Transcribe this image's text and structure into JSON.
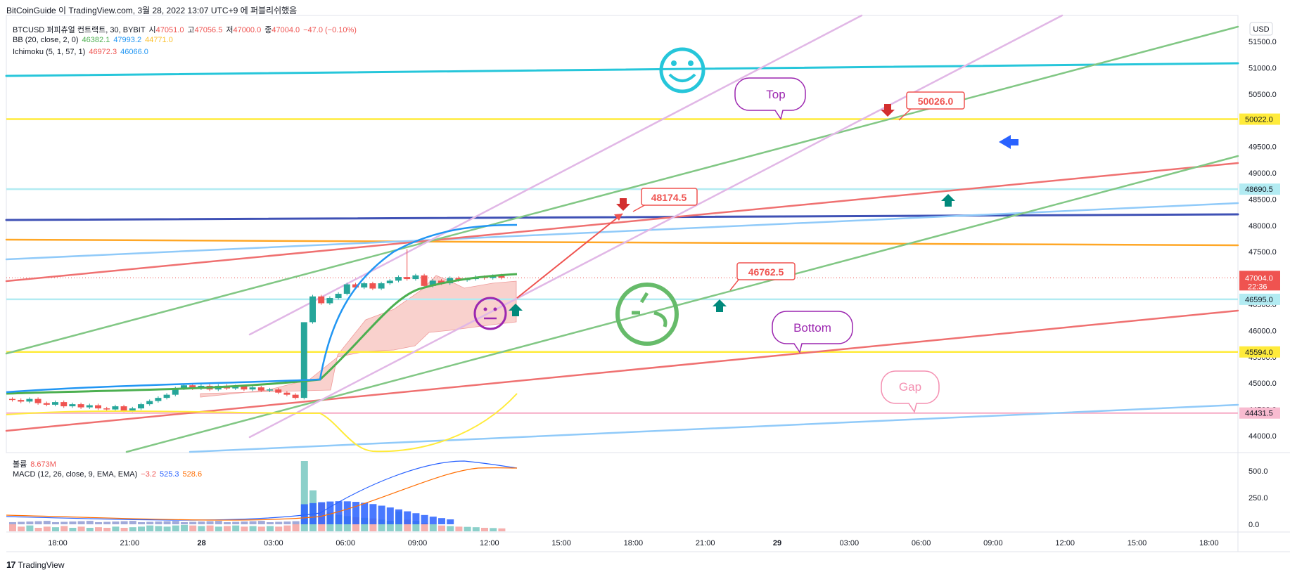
{
  "header": {
    "caption": "BitCoinGuide 이 TradingView.com, 3월 28, 2022 13:07 UTC+9 에 퍼블리쉬했음"
  },
  "legend": {
    "symbol": "BTCUSD 퍼피츄얼 컨트랙트, 30, BYBIT",
    "o_label": "시",
    "o_value": "47051.0",
    "h_label": "고",
    "h_value": "47056.5",
    "l_label": "저",
    "l_value": "47000.0",
    "c_label": "종",
    "c_value": "47004.0",
    "change": "−47.0 (−0.10%)",
    "bb_label": "BB (20, close, 2, 0)",
    "bb_basis": "46382.1",
    "bb_upper": "47993.2",
    "bb_lower": "44771.0",
    "ichi_label": "Ichimoku (5, 1, 57, 1)",
    "ichi_a": "46972.3",
    "ichi_b": "46066.0",
    "vol_label": "볼륨",
    "vol_value": "8.673M",
    "macd_label": "MACD (12, 26, close, 9, EMA, EMA)",
    "macd_hist": "−3.2",
    "macd_line": "525.3",
    "macd_signal": "528.6"
  },
  "price_axis": {
    "currency": "USD",
    "ticks": [
      "51500.0",
      "51000.0",
      "50500.0",
      "50000.0",
      "49500.0",
      "49000.0",
      "48500.0",
      "48000.0",
      "47500.0",
      "47000.0",
      "46500.0",
      "46000.0",
      "45500.0",
      "45000.0",
      "44500.0",
      "44000.0"
    ],
    "badges": [
      {
        "text": "50022.0",
        "value": 50022,
        "bg": "#ffeb3b",
        "fg": "#131722"
      },
      {
        "text": "48690.5",
        "value": 48690.5,
        "bg": "#b2ebf2",
        "fg": "#131722"
      },
      {
        "text": "46595.0",
        "value": 46595,
        "bg": "#b2ebf2",
        "fg": "#131722"
      },
      {
        "text": "45594.0",
        "value": 45594,
        "bg": "#ffeb3b",
        "fg": "#131722"
      },
      {
        "text": "44431.5",
        "value": 44431.5,
        "bg": "#f8bbd0",
        "fg": "#131722"
      }
    ],
    "current_price": "47004.0",
    "countdown": "22:36"
  },
  "macd_axis": {
    "ticks": [
      "500.0",
      "250.0",
      "0.0"
    ]
  },
  "time_axis": {
    "labels": [
      "18:00",
      "21:00",
      "28",
      "03:00",
      "06:00",
      "09:00",
      "12:00",
      "15:00",
      "18:00",
      "21:00",
      "29",
      "03:00",
      "06:00",
      "09:00",
      "12:00",
      "15:00",
      "18:00"
    ]
  },
  "annotations": {
    "top": "Top",
    "bottom": "Bottom",
    "gap": "Gap",
    "price1": "48174.5",
    "price2": "50026.0",
    "price3": "46762.5"
  },
  "colors": {
    "up": "#26a69a",
    "down": "#ef5350",
    "bb_basis": "#4caf50",
    "bb_upper": "#2196f3",
    "bb_lower": "#ffeb3b",
    "cloud": "#f8c9c4",
    "accent_purple": "#9c27b0"
  },
  "footer": {
    "brand": "TradingView"
  },
  "chart_data": {
    "type": "candlestick",
    "symbol": "BTCUSD",
    "interval": "30",
    "exchange": "BYBIT",
    "ylim": [
      43700,
      51900
    ],
    "key_levels": [
      50022.0,
      48690.5,
      46595.0,
      45594.0,
      44431.5
    ],
    "candles_close": [
      44680,
      44650,
      44700,
      44620,
      44590,
      44640,
      44560,
      44600,
      44540,
      44580,
      44520,
      44500,
      44560,
      44480,
      44520,
      44600,
      44660,
      44720,
      44780,
      44900,
      44960,
      44900,
      44950,
      44880,
      44950,
      44900,
      44940,
      44880,
      44920,
      44860,
      44880,
      44820,
      44780,
      44720,
      46160,
      46650,
      46520,
      46620,
      46700,
      46880,
      46820,
      46900,
      46800,
      46900,
      46950,
      47020,
      46980,
      47050,
      46850,
      46950,
      46900,
      47000,
      46960,
      46980,
      47020,
      47000,
      47040,
      47004
    ],
    "candles_open": [
      44700,
      44680,
      44650,
      44700,
      44620,
      44590,
      44640,
      44560,
      44600,
      44540,
      44580,
      44520,
      44500,
      44560,
      44480,
      44520,
      44600,
      44660,
      44720,
      44780,
      44900,
      44960,
      44900,
      44950,
      44880,
      44950,
      44900,
      44940,
      44880,
      44920,
      44860,
      44880,
      44820,
      44780,
      44720,
      46160,
      46650,
      46520,
      46620,
      46700,
      46880,
      46820,
      46900,
      46800,
      46900,
      46950,
      47020,
      46980,
      47050,
      46850,
      46950,
      46900,
      47000,
      46960,
      46980,
      47020,
      47000,
      47051
    ],
    "volume": [
      60,
      40,
      50,
      30,
      40,
      35,
      45,
      30,
      40,
      30,
      35,
      30,
      40,
      30,
      35,
      40,
      50,
      45,
      40,
      50,
      55,
      50,
      45,
      50,
      40,
      45,
      50,
      40,
      45,
      40,
      45,
      40,
      50,
      60,
      600,
      350,
      240,
      160,
      140,
      130,
      120,
      115,
      110,
      100,
      90,
      170,
      100,
      90,
      70,
      60,
      50,
      45,
      40,
      38,
      35,
      30,
      28,
      25
    ]
  }
}
